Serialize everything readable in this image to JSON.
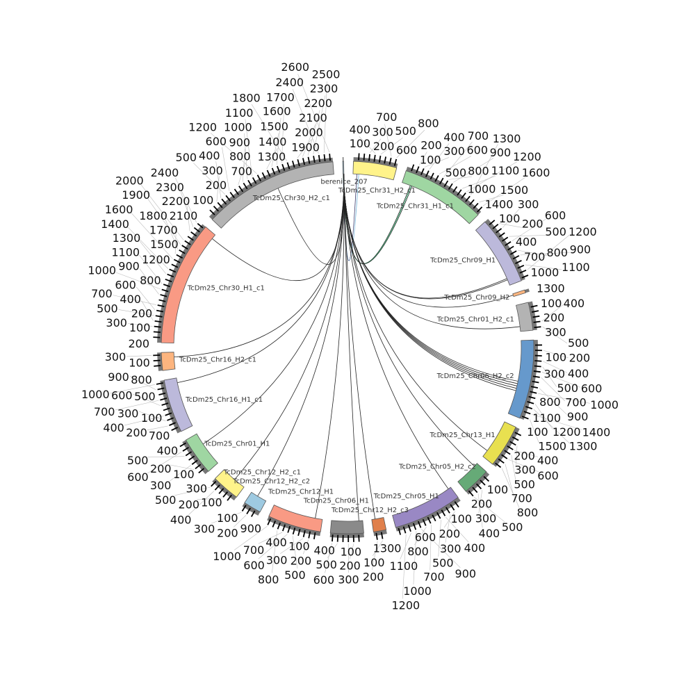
{
  "chart_data": {
    "type": "chord",
    "tick_step": 100,
    "sectors": [
      {
        "name": "berenice_207",
        "length": 20,
        "color": "#a6c8dc"
      },
      {
        "name": "TcDm25_Chr31_H2_c1",
        "length": 850,
        "color": "#fff38a"
      },
      {
        "name": "TcDm25_Chr31_H1_c1",
        "length": 1650,
        "color": "#9fd6a2"
      },
      {
        "name": "TcDm25_Chr09_H1",
        "length": 1350,
        "color": "#bcb9db"
      },
      {
        "name": "TcDm25_Chr09_H2",
        "length": 60,
        "color": "#fdb57f"
      },
      {
        "name": "TcDm25_Chr01_H2_c1",
        "length": 550,
        "color": "#b3b3b3"
      },
      {
        "name": "TcDm25_Chr06_H2_c2",
        "length": 1550,
        "color": "#6699cc"
      },
      {
        "name": "TcDm25_Chr13_H1",
        "length": 850,
        "color": "#e8e050"
      },
      {
        "name": "TcDm25_Chr05_H2_c2",
        "length": 550,
        "color": "#66aa77"
      },
      {
        "name": "TcDm25_Chr05_H1",
        "length": 1350,
        "color": "#9988c4"
      },
      {
        "name": "TcDm25_Chr12_H2_c3",
        "length": 250,
        "color": "#e0804c"
      },
      {
        "name": "TcDm25_Chr06_H1",
        "length": 650,
        "color": "#8a8a8a"
      },
      {
        "name": "TcDm25_Chr12_H1",
        "length": 1050,
        "color": "#f99a84"
      },
      {
        "name": "TcDm25_Chr12_H2_c2",
        "length": 350,
        "color": "#9ecae1"
      },
      {
        "name": "TcDm25_Chr12_H2_c1",
        "length": 550,
        "color": "#fff38a"
      },
      {
        "name": "TcDm25_Chr01_H1",
        "length": 750,
        "color": "#9fd6a2"
      },
      {
        "name": "TcDm25_Chr16_H1_c1",
        "length": 1050,
        "color": "#bcb9db"
      },
      {
        "name": "TcDm25_Chr16_H2_c1",
        "length": 350,
        "color": "#fdb57f"
      },
      {
        "name": "TcDm25_Chr30_H1_c1",
        "length": 2450,
        "color": "#f99a84"
      },
      {
        "name": "TcDm25_Chr30_H2_c1",
        "length": 2650,
        "color": "#b3b3b3"
      }
    ],
    "links": [
      {
        "source": 0,
        "spos": 5,
        "target": 1,
        "tpos": 120,
        "color": "#6baed6"
      },
      {
        "source": 0,
        "spos": 6,
        "target": 1,
        "tpos": 80,
        "color": "#333366"
      },
      {
        "source": 0,
        "spos": 7,
        "target": 2,
        "tpos": 180,
        "color": "#222"
      },
      {
        "source": 0,
        "spos": 8,
        "target": 2,
        "tpos": 200,
        "color": "#2a6"
      },
      {
        "source": 0,
        "spos": 9,
        "target": 2,
        "tpos": 220,
        "color": "#222"
      },
      {
        "source": 0,
        "spos": 10,
        "target": 3,
        "tpos": 1200,
        "color": "#222"
      },
      {
        "source": 0,
        "spos": 10,
        "target": 3,
        "tpos": 1230,
        "color": "#222"
      },
      {
        "source": 0,
        "spos": 11,
        "target": 4,
        "tpos": 30,
        "color": "#222"
      },
      {
        "source": 0,
        "spos": 11,
        "target": 5,
        "tpos": 450,
        "color": "#222"
      },
      {
        "source": 0,
        "spos": 12,
        "target": 6,
        "tpos": 850,
        "color": "#222"
      },
      {
        "source": 0,
        "spos": 12,
        "target": 6,
        "tpos": 900,
        "color": "#222"
      },
      {
        "source": 0,
        "spos": 12,
        "target": 6,
        "tpos": 950,
        "color": "#222"
      },
      {
        "source": 0,
        "spos": 13,
        "target": 6,
        "tpos": 1000,
        "color": "#222"
      },
      {
        "source": 0,
        "spos": 13,
        "target": 6,
        "tpos": 1050,
        "color": "#222"
      },
      {
        "source": 0,
        "spos": 13,
        "target": 7,
        "tpos": 700,
        "color": "#222"
      },
      {
        "source": 0,
        "spos": 14,
        "target": 8,
        "tpos": 80,
        "color": "#222"
      },
      {
        "source": 0,
        "spos": 14,
        "target": 9,
        "tpos": 60,
        "color": "#222"
      },
      {
        "source": 0,
        "spos": 15,
        "target": 10,
        "tpos": 180,
        "color": "#222"
      },
      {
        "source": 0,
        "spos": 15,
        "target": 11,
        "tpos": 80,
        "color": "#222"
      },
      {
        "source": 0,
        "spos": 16,
        "target": 12,
        "tpos": 150,
        "color": "#222"
      },
      {
        "source": 0,
        "spos": 16,
        "target": 13,
        "tpos": 200,
        "color": "#222"
      },
      {
        "source": 0,
        "spos": 17,
        "target": 14,
        "tpos": 250,
        "color": "#222"
      },
      {
        "source": 0,
        "spos": 17,
        "target": 15,
        "tpos": 500,
        "color": "#222"
      },
      {
        "source": 0,
        "spos": 18,
        "target": 16,
        "tpos": 950,
        "color": "#222"
      },
      {
        "source": 0,
        "spos": 18,
        "target": 17,
        "tpos": 250,
        "color": "#222"
      },
      {
        "source": 0,
        "spos": 19,
        "target": 18,
        "tpos": 2350,
        "color": "#222"
      },
      {
        "source": 0,
        "spos": 19,
        "target": 19,
        "tpos": 1450,
        "color": "#222"
      }
    ]
  }
}
